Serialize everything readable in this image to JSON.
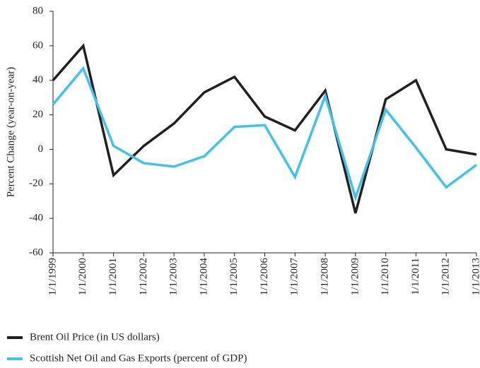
{
  "chart_data": {
    "type": "line",
    "y_label": "Percent Change (year-on-year)",
    "categories": [
      "1/1/1999",
      "1/1/2000",
      "1/1/2001",
      "1/1/2002",
      "1/1/2003",
      "1/1/2004",
      "1/1/2005",
      "1/1/2006",
      "1/1/2007",
      "1/1/2008",
      "1/1/2009",
      "1/1/2010",
      "1/1/2011",
      "1/1/2012",
      "1/1/2013"
    ],
    "series": [
      {
        "name": "Brent Oil Price (in US dollars)",
        "color": "#231f20",
        "values": [
          40,
          60,
          -15,
          2,
          15,
          33,
          42,
          19,
          11,
          34,
          -37,
          29,
          40,
          0,
          -3
        ]
      },
      {
        "name": "Scottish Net Oil and Gas Exports (percent of GDP)",
        "color": "#3fc3ee",
        "values": [
          26,
          47,
          2,
          -8,
          -10,
          -4,
          13,
          14,
          -16,
          31,
          -28,
          23,
          1,
          -22,
          -9
        ]
      }
    ],
    "ylim": [
      -60,
      80
    ],
    "yticks": [
      -60,
      -40,
      -20,
      0,
      20,
      40,
      60,
      80
    ],
    "grid": false
  }
}
